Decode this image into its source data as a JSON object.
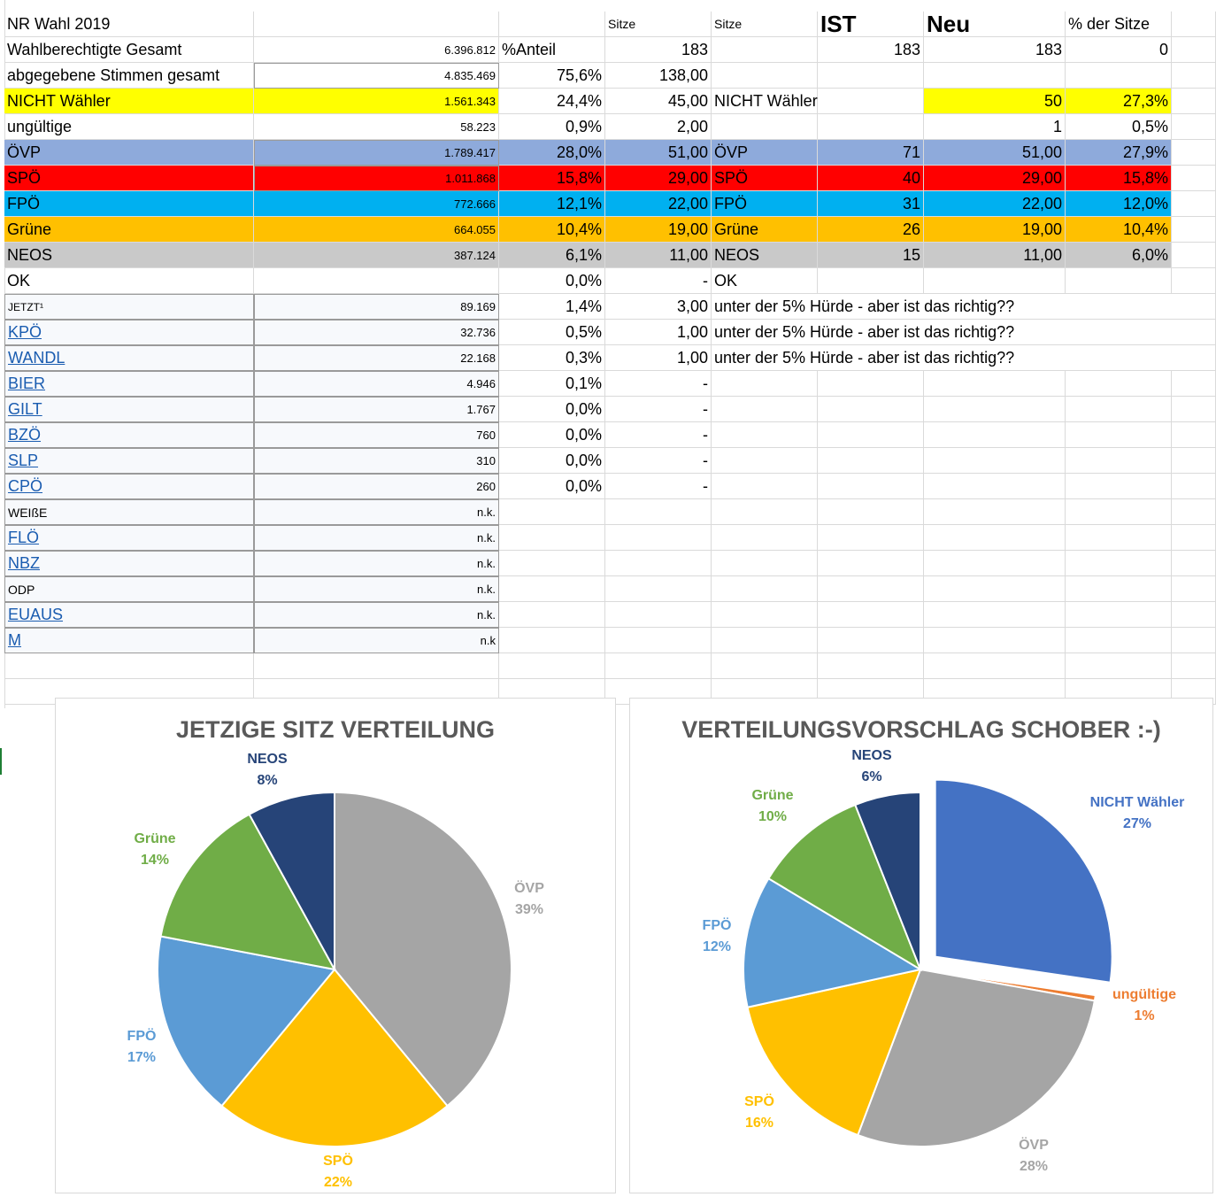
{
  "sheet": {
    "header": {
      "a": "NR Wahl 2019",
      "e": "Sitze",
      "f": "Sitze",
      "g": "IST",
      "h": "Neu",
      "i": "% der Sitze"
    },
    "summary": [
      {
        "a": "Wahlberechtigte Gesamt",
        "b": "6.396.812",
        "c": "%Anteil",
        "d": "",
        "e": "183",
        "f": "",
        "g": "183",
        "h": "183",
        "i": "0"
      },
      {
        "a": "abgegebene Stimmen gesamt",
        "b": "4.835.469",
        "c": "75,6%",
        "d": "",
        "e": "138,00",
        "f": "",
        "g": "",
        "h": "",
        "i": ""
      },
      {
        "a": "NICHT Wähler",
        "b": "1.561.343",
        "c": "24,4%",
        "d": "",
        "e": "45,00",
        "f": "NICHT Wähler",
        "g": "",
        "h": "50",
        "i": "27,3%"
      },
      {
        "a": "ungültige",
        "b": "58.223",
        "c": "0,9%",
        "d": "",
        "e": "2,00",
        "f": "",
        "g": "",
        "h": "1",
        "i": "0,5%"
      }
    ],
    "parties": [
      {
        "a": "ÖVP",
        "b": "1.789.417",
        "c": "28,0%",
        "e": "51,00",
        "f": "ÖVP",
        "g": "71",
        "h": "51,00",
        "i": "27,9%"
      },
      {
        "a": "SPÖ",
        "b": "1.011.868",
        "c": "15,8%",
        "e": "29,00",
        "f": "SPÖ",
        "g": "40",
        "h": "29,00",
        "i": "15,8%"
      },
      {
        "a": "FPÖ",
        "b": "772.666",
        "c": "12,1%",
        "e": "22,00",
        "f": "FPÖ",
        "g": "31",
        "h": "22,00",
        "i": "12,0%"
      },
      {
        "a": "Grüne",
        "b": "664.055",
        "c": "10,4%",
        "e": "19,00",
        "f": "Grüne",
        "g": "26",
        "h": "19,00",
        "i": "10,4%"
      },
      {
        "a": "NEOS",
        "b": "387.124",
        "c": "6,1%",
        "e": "11,00",
        "f": "NEOS",
        "g": "15",
        "h": "11,00",
        "i": "6,0%"
      },
      {
        "a": "OK",
        "b": "",
        "c": "0,0%",
        "e": "-",
        "f": "OK",
        "g": "",
        "h": "",
        "i": ""
      }
    ],
    "small_parties": [
      {
        "a": "JETZT¹",
        "b": "89.169",
        "c": "1,4%",
        "e": "3,00",
        "f": "unter der 5% Hürde - aber ist das richtig??"
      },
      {
        "a": "KPÖ",
        "b": "32.736",
        "c": "0,5%",
        "e": "1,00",
        "f": "unter der 5% Hürde - aber ist das richtig??"
      },
      {
        "a": "WANDL",
        "b": "22.168",
        "c": "0,3%",
        "e": "1,00",
        "f": "unter der 5% Hürde - aber ist das richtig??"
      },
      {
        "a": "BIER",
        "b": "4.946",
        "c": "0,1%",
        "e": "-",
        "f": ""
      },
      {
        "a": "GILT",
        "b": "1.767",
        "c": "0,0%",
        "e": "-",
        "f": ""
      },
      {
        "a": "BZÖ",
        "b": "760",
        "c": "0,0%",
        "e": "-",
        "f": ""
      },
      {
        "a": "SLP",
        "b": "310",
        "c": "0,0%",
        "e": "-",
        "f": ""
      },
      {
        "a": "CPÖ",
        "b": "260",
        "c": "0,0%",
        "e": "-",
        "f": ""
      },
      {
        "a": "WEIßE",
        "b": "n.k.",
        "c": "",
        "e": "",
        "f": ""
      },
      {
        "a": "FLÖ",
        "b": "n.k.",
        "c": "",
        "e": "",
        "f": ""
      },
      {
        "a": "NBZ",
        "b": "n.k.",
        "c": "",
        "e": "",
        "f": ""
      },
      {
        "a": "ODP",
        "b": "n.k.",
        "c": "",
        "e": "",
        "f": ""
      },
      {
        "a": "EUAUS",
        "b": "n.k.",
        "c": "",
        "e": "",
        "f": ""
      },
      {
        "a": "M",
        "b": "n.k",
        "c": "",
        "e": "",
        "f": ""
      }
    ]
  },
  "colors": {
    "yellow_row": "#ffff00",
    "oevp_row": "#8eaadb",
    "spoe_row": "#ff0000",
    "fpoe_row": "#00b0f0",
    "gruene_row": "#ffc000",
    "neos_row": "#c9c9c9"
  },
  "chart_data": [
    {
      "type": "pie",
      "title": "JETZIGE SITZ VERTEILUNG",
      "slices": [
        {
          "label": "ÖVP",
          "value": 39,
          "pct": "39%",
          "color": "#a5a5a5"
        },
        {
          "label": "SPÖ",
          "value": 22,
          "pct": "22%",
          "color": "#ffc000"
        },
        {
          "label": "FPÖ",
          "value": 17,
          "pct": "17%",
          "color": "#5b9bd5"
        },
        {
          "label": "Grüne",
          "value": 14,
          "pct": "14%",
          "color": "#70ad47"
        },
        {
          "label": "NEOS",
          "value": 8,
          "pct": "8%",
          "color": "#264478"
        }
      ]
    },
    {
      "type": "pie",
      "title": "VERTEILUNGSVORSCHLAG SCHOBER :-)",
      "slices": [
        {
          "label": "NICHT Wähler",
          "value": 27.3,
          "pct": "27%",
          "color": "#4472c4",
          "exploded": true
        },
        {
          "label": "ungültige",
          "value": 0.5,
          "pct": "1%",
          "color": "#ed7d31"
        },
        {
          "label": "ÖVP",
          "value": 27.9,
          "pct": "28%",
          "color": "#a5a5a5"
        },
        {
          "label": "SPÖ",
          "value": 15.8,
          "pct": "16%",
          "color": "#ffc000"
        },
        {
          "label": "FPÖ",
          "value": 12.0,
          "pct": "12%",
          "color": "#5b9bd5"
        },
        {
          "label": "Grüne",
          "value": 10.4,
          "pct": "10%",
          "color": "#70ad47"
        },
        {
          "label": "NEOS",
          "value": 6.0,
          "pct": "6%",
          "color": "#264478"
        }
      ]
    }
  ]
}
